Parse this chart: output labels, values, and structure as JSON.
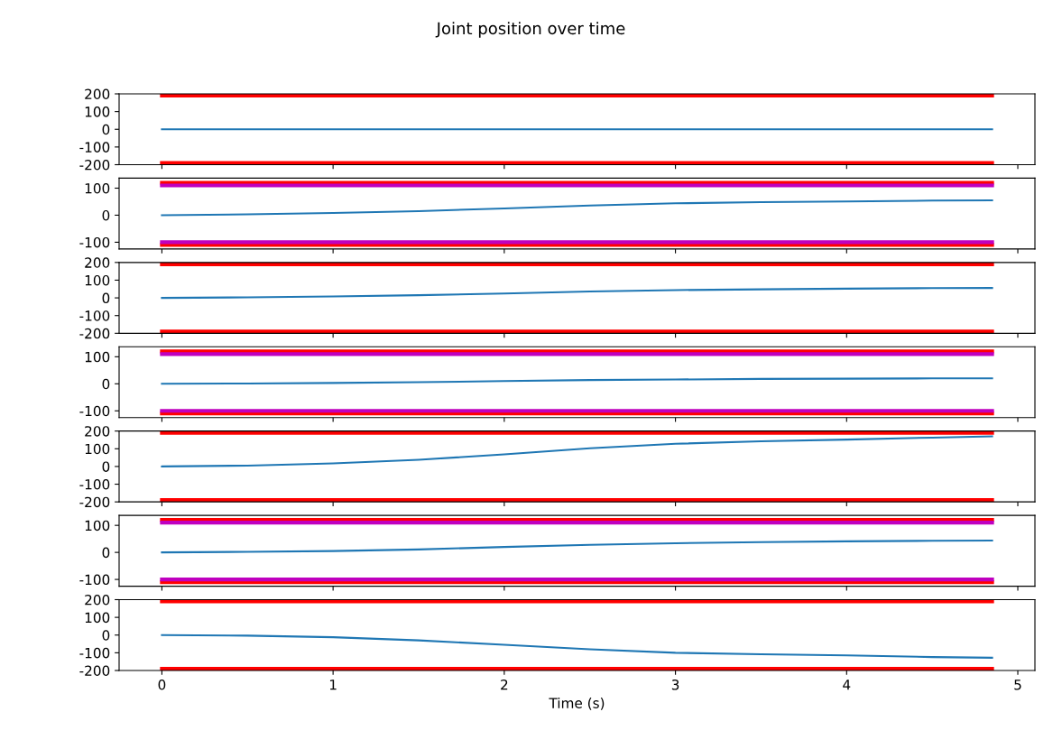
{
  "chart_data": [
    {
      "type": "line",
      "title": "Joint position over time",
      "xlim": [
        -0.25,
        5.1
      ],
      "xticks": [
        0,
        1,
        2,
        3,
        4,
        5
      ],
      "ylim": [
        -200,
        200
      ],
      "yticks": [
        -200,
        -100,
        0,
        100,
        200
      ],
      "tick_labels": "y",
      "series": [
        {
          "color": "#1f77b4",
          "x": [
            0,
            1,
            2,
            3,
            4,
            4.85
          ],
          "values": [
            0,
            0,
            0,
            0,
            0,
            0
          ]
        },
        {
          "color": "#ff0000",
          "x": [
            0,
            4.85
          ],
          "values": [
            190,
            190
          ]
        },
        {
          "color": "#ff0000",
          "x": [
            0,
            4.85
          ],
          "values": [
            -190,
            -190
          ]
        }
      ]
    },
    {
      "type": "line",
      "xlim": [
        -0.25,
        5.1
      ],
      "xticks": [
        0,
        1,
        2,
        3,
        4,
        5
      ],
      "ylim": [
        -125,
        137
      ],
      "yticks": [
        -100,
        0,
        100
      ],
      "tick_labels": "y",
      "series": [
        {
          "color": "#1f77b4",
          "x": [
            0,
            0.5,
            1,
            1.5,
            2,
            2.5,
            3,
            3.5,
            4,
            4.5,
            4.85
          ],
          "values": [
            0,
            3,
            8,
            15,
            25,
            36,
            44,
            48,
            51,
            54,
            55
          ]
        },
        {
          "color": "#ff0000",
          "x": [
            0,
            4.85
          ],
          "values": [
            120,
            120
          ]
        },
        {
          "color": "#bf00bf",
          "x": [
            0,
            4.85
          ],
          "values": [
            110,
            110
          ]
        },
        {
          "color": "#ff0000",
          "x": [
            0,
            4.85
          ],
          "values": [
            -110,
            -110
          ]
        },
        {
          "color": "#bf00bf",
          "x": [
            0,
            4.85
          ],
          "values": [
            -100,
            -100
          ]
        }
      ]
    },
    {
      "type": "line",
      "xlim": [
        -0.25,
        5.1
      ],
      "xticks": [
        0,
        1,
        2,
        3,
        4,
        5
      ],
      "ylim": [
        -200,
        200
      ],
      "yticks": [
        -200,
        -100,
        0,
        100,
        200
      ],
      "tick_labels": "y",
      "series": [
        {
          "color": "#1f77b4",
          "x": [
            0,
            0.5,
            1,
            1.5,
            2,
            2.5,
            3,
            3.5,
            4,
            4.5,
            4.85
          ],
          "values": [
            0,
            3,
            8,
            15,
            25,
            36,
            44,
            48,
            52,
            55,
            56
          ]
        },
        {
          "color": "#ff0000",
          "x": [
            0,
            4.85
          ],
          "values": [
            190,
            190
          ]
        },
        {
          "color": "#ff0000",
          "x": [
            0,
            4.85
          ],
          "values": [
            -190,
            -190
          ]
        }
      ]
    },
    {
      "type": "line",
      "xlim": [
        -0.25,
        5.1
      ],
      "xticks": [
        0,
        1,
        2,
        3,
        4,
        5
      ],
      "ylim": [
        -125,
        137
      ],
      "yticks": [
        -100,
        0,
        100
      ],
      "tick_labels": "y",
      "series": [
        {
          "color": "#1f77b4",
          "x": [
            0,
            0.5,
            1,
            1.5,
            2,
            2.5,
            3,
            3.5,
            4,
            4.5,
            4.85
          ],
          "values": [
            0,
            1,
            3,
            6,
            10,
            14,
            16,
            18,
            19,
            20,
            20
          ]
        },
        {
          "color": "#ff0000",
          "x": [
            0,
            4.85
          ],
          "values": [
            120,
            120
          ]
        },
        {
          "color": "#bf00bf",
          "x": [
            0,
            4.85
          ],
          "values": [
            110,
            110
          ]
        },
        {
          "color": "#ff0000",
          "x": [
            0,
            4.85
          ],
          "values": [
            -110,
            -110
          ]
        },
        {
          "color": "#bf00bf",
          "x": [
            0,
            4.85
          ],
          "values": [
            -100,
            -100
          ]
        }
      ]
    },
    {
      "type": "line",
      "xlim": [
        -0.25,
        5.1
      ],
      "xticks": [
        0,
        1,
        2,
        3,
        4,
        5
      ],
      "ylim": [
        -200,
        200
      ],
      "yticks": [
        -200,
        -100,
        0,
        100,
        200
      ],
      "tick_labels": "y",
      "series": [
        {
          "color": "#1f77b4",
          "x": [
            0,
            0.5,
            1,
            1.5,
            2,
            2.5,
            3,
            3.5,
            4,
            4.5,
            4.85
          ],
          "values": [
            0,
            5,
            17,
            38,
            68,
            103,
            128,
            142,
            152,
            163,
            170
          ]
        },
        {
          "color": "#ff0000",
          "x": [
            0,
            4.85
          ],
          "values": [
            190,
            190
          ]
        },
        {
          "color": "#ff0000",
          "x": [
            0,
            4.85
          ],
          "values": [
            -190,
            -190
          ]
        }
      ]
    },
    {
      "type": "line",
      "xlim": [
        -0.25,
        5.1
      ],
      "xticks": [
        0,
        1,
        2,
        3,
        4,
        5
      ],
      "ylim": [
        -125,
        137
      ],
      "yticks": [
        -100,
        0,
        100
      ],
      "tick_labels": "y",
      "series": [
        {
          "color": "#1f77b4",
          "x": [
            0,
            0.5,
            1,
            1.5,
            2,
            2.5,
            3,
            3.5,
            4,
            4.5,
            4.85
          ],
          "values": [
            0,
            2,
            5,
            11,
            20,
            28,
            34,
            38,
            41,
            43,
            44
          ]
        },
        {
          "color": "#ff0000",
          "x": [
            0,
            4.85
          ],
          "values": [
            120,
            120
          ]
        },
        {
          "color": "#bf00bf",
          "x": [
            0,
            4.85
          ],
          "values": [
            110,
            110
          ]
        },
        {
          "color": "#ff0000",
          "x": [
            0,
            4.85
          ],
          "values": [
            -110,
            -110
          ]
        },
        {
          "color": "#bf00bf",
          "x": [
            0,
            4.85
          ],
          "values": [
            -100,
            -100
          ]
        }
      ]
    },
    {
      "type": "line",
      "xlabel": "Time (s)",
      "xlim": [
        -0.25,
        5.1
      ],
      "xticks": [
        0,
        1,
        2,
        3,
        4,
        5
      ],
      "ylim": [
        -200,
        200
      ],
      "yticks": [
        -200,
        -100,
        0,
        100,
        200
      ],
      "series": [
        {
          "color": "#1f77b4",
          "x": [
            0,
            0.5,
            1,
            1.5,
            2,
            2.5,
            3,
            3.5,
            4,
            4.5,
            4.85
          ],
          "values": [
            0,
            -3,
            -12,
            -30,
            -55,
            -80,
            -100,
            -108,
            -115,
            -124,
            -128
          ]
        },
        {
          "color": "#ff0000",
          "x": [
            0,
            4.85
          ],
          "values": [
            190,
            190
          ]
        },
        {
          "color": "#ff0000",
          "x": [
            0,
            4.85
          ],
          "values": [
            -190,
            -190
          ]
        }
      ]
    }
  ]
}
